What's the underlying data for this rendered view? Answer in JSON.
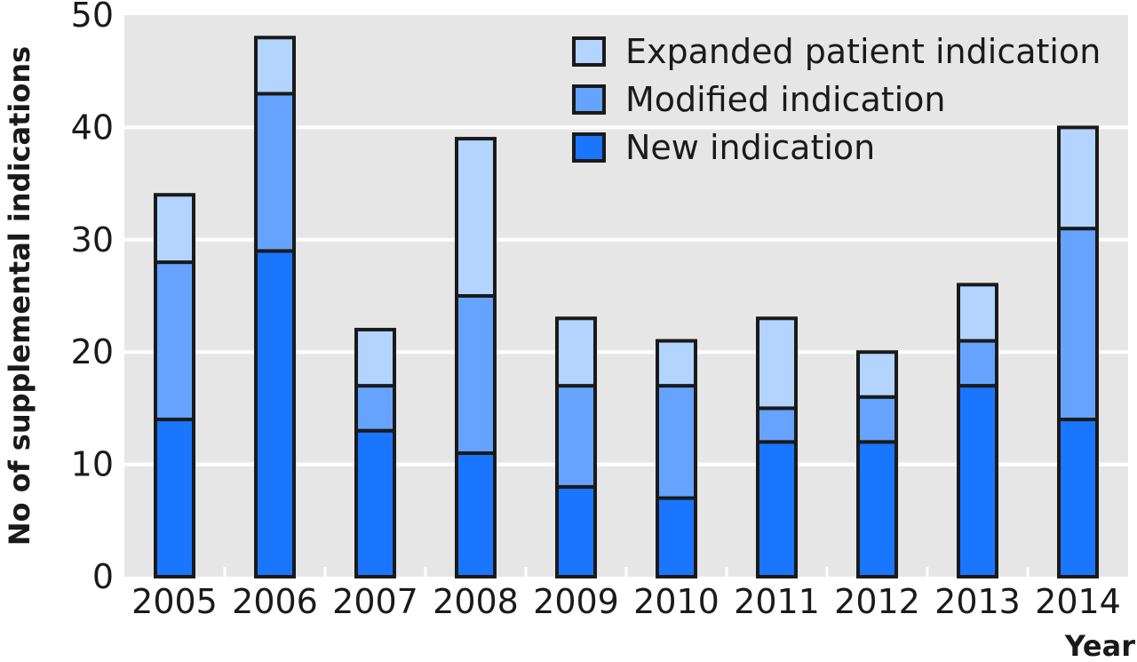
{
  "chart_data": {
    "type": "bar",
    "stacked": true,
    "categories": [
      "2005",
      "2006",
      "2007",
      "2008",
      "2009",
      "2010",
      "2011",
      "2012",
      "2013",
      "2014"
    ],
    "series": [
      {
        "name": "New indication",
        "values": [
          14,
          29,
          13,
          11,
          8,
          7,
          12,
          12,
          17,
          14
        ],
        "color": "#1a75ff"
      },
      {
        "name": "Modified indication",
        "values": [
          14,
          14,
          4,
          14,
          9,
          10,
          3,
          4,
          4,
          17
        ],
        "color": "#66a3ff"
      },
      {
        "name": "Expanded patient indication",
        "values": [
          6,
          5,
          5,
          14,
          6,
          4,
          8,
          4,
          5,
          9
        ],
        "color": "#b3d4ff"
      }
    ],
    "legend_order": [
      "Expanded patient indication",
      "Modified indication",
      "New indication"
    ],
    "legend_position": "top-right",
    "xlabel": "Year",
    "ylabel": "No of supplemental indications",
    "ylim": [
      0,
      50
    ],
    "yticks": [
      0,
      10,
      20,
      30,
      40,
      50
    ],
    "grid": true,
    "background": "#e6e6e6"
  }
}
